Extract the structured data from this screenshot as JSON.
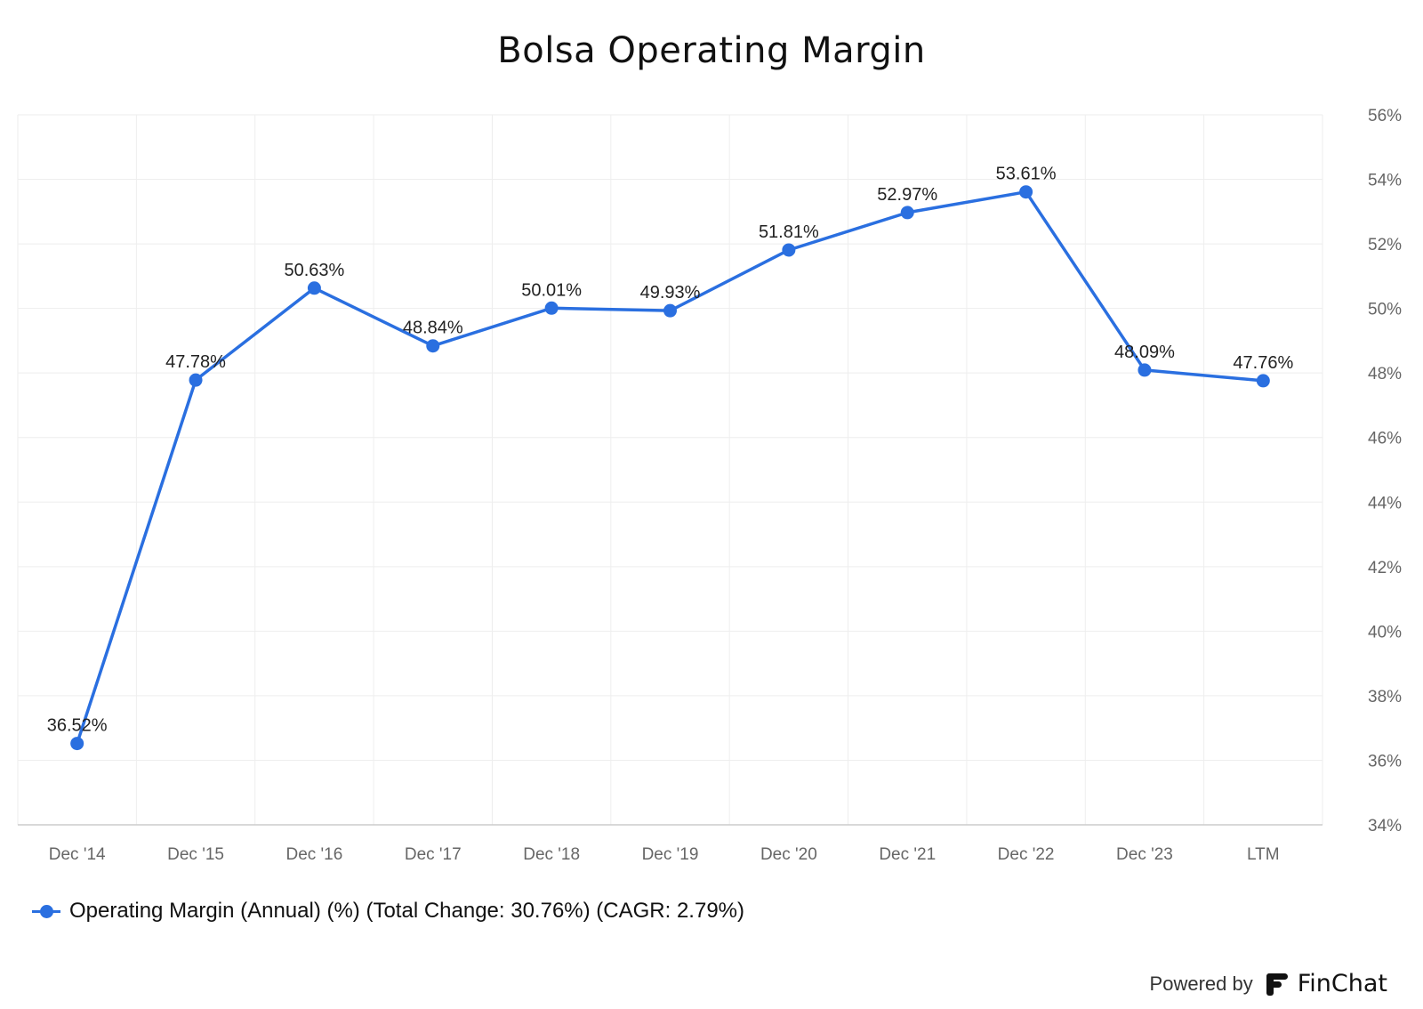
{
  "title": "Bolsa Operating Margin",
  "colors": {
    "series": "#2a6fe0",
    "grid": "#eeeeee",
    "axis": "#cccccc"
  },
  "chart_data": {
    "type": "line",
    "title": "Bolsa Operating Margin",
    "categories": [
      "Dec '14",
      "Dec '15",
      "Dec '16",
      "Dec '17",
      "Dec '18",
      "Dec '19",
      "Dec '20",
      "Dec '21",
      "Dec '22",
      "Dec '23",
      "LTM"
    ],
    "series": [
      {
        "name": "Operating Margin (Annual) (%) (Total Change: 30.76%) (CAGR: 2.79%)",
        "values": [
          36.52,
          47.78,
          50.63,
          48.84,
          50.01,
          49.93,
          51.81,
          52.97,
          53.61,
          48.09,
          47.76
        ],
        "labels": [
          "36.52%",
          "47.78%",
          "50.63%",
          "48.84%",
          "50.01%",
          "49.93%",
          "51.81%",
          "52.97%",
          "53.61%",
          "48.09%",
          "47.76%"
        ]
      }
    ],
    "ylim": [
      34,
      56
    ],
    "yticks": [
      "34%",
      "36%",
      "38%",
      "40%",
      "42%",
      "44%",
      "46%",
      "48%",
      "50%",
      "52%",
      "54%",
      "56%"
    ],
    "y_axis_side": "right",
    "grid": true,
    "legend_position": "bottom-left"
  },
  "legend": {
    "label": "Operating Margin (Annual) (%) (Total Change: 30.76%) (CAGR: 2.79%)"
  },
  "branding": {
    "prefix": "Powered by",
    "name": "FinChat",
    "icon": "finchat-logo-icon"
  }
}
